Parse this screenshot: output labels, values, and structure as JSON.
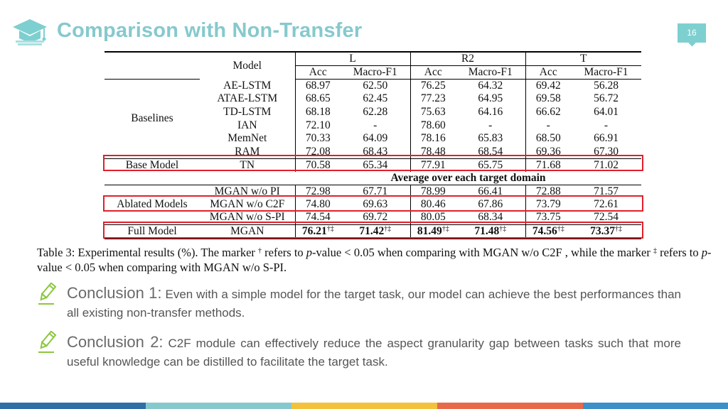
{
  "slide": {
    "title": "Comparison with Non-Transfer",
    "page_number": "16",
    "colors": {
      "title": "#86c9cd",
      "accent": "#7ecfd0",
      "highlight_box": "#e0202a"
    },
    "icons": {
      "logo": "graduation-cap-icon",
      "bullet": "pencil-icon"
    }
  },
  "table": {
    "model_header": "Model",
    "domains": [
      "L",
      "R2",
      "T"
    ],
    "metrics": [
      "Acc",
      "Macro-F1",
      "Acc",
      "Macro-F1",
      "Acc",
      "Macro-F1"
    ],
    "baselines_label": "Baselines",
    "baselines": [
      {
        "model": "AE-LSTM",
        "vals": [
          "68.97",
          "62.50",
          "76.25",
          "64.32",
          "69.42",
          "56.28"
        ]
      },
      {
        "model": "ATAE-LSTM",
        "vals": [
          "68.65",
          "62.45",
          "77.23",
          "64.95",
          "69.58",
          "56.72"
        ]
      },
      {
        "model": "TD-LSTM",
        "vals": [
          "68.18",
          "62.28",
          "75.63",
          "64.16",
          "66.62",
          "64.01"
        ]
      },
      {
        "model": "IAN",
        "vals": [
          "72.10",
          "-",
          "78.60",
          "-",
          "-",
          "-"
        ]
      },
      {
        "model": "MemNet",
        "vals": [
          "70.33",
          "64.09",
          "78.16",
          "65.83",
          "68.50",
          "66.91"
        ]
      },
      {
        "model": "RAM",
        "vals": [
          "72.08",
          "68.43",
          "78.48",
          "68.54",
          "69.36",
          "67.30"
        ]
      }
    ],
    "base": {
      "label": "Base Model",
      "model": "TN",
      "vals": [
        "70.58",
        "65.34",
        "77.91",
        "65.75",
        "71.68",
        "71.02"
      ]
    },
    "average_header": "Average over each target domain",
    "ablated_label": "Ablated Models",
    "ablated": [
      {
        "model": "MGAN w/o PI",
        "vals": [
          "72.98",
          "67.71",
          "78.99",
          "66.41",
          "72.88",
          "71.57"
        ]
      },
      {
        "model": "MGAN w/o C2F",
        "vals": [
          "74.80",
          "69.63",
          "80.46",
          "67.86",
          "73.79",
          "72.61"
        ]
      },
      {
        "model": "MGAN w/o S-PI",
        "vals": [
          "74.54",
          "69.72",
          "80.05",
          "68.34",
          "73.75",
          "72.54"
        ]
      }
    ],
    "full": {
      "label": "Full Model",
      "model": "MGAN",
      "vals": [
        "76.21",
        "71.42",
        "81.49",
        "71.48",
        "74.56",
        "73.37"
      ],
      "marks": [
        "†‡",
        "†‡",
        "†‡",
        "†‡",
        "†‡",
        "†‡"
      ]
    }
  },
  "caption": {
    "p1": "Table 3: Experimental results (%). The marker ",
    "dagger": "†",
    "p2": " refers to ",
    "p": "p",
    "p3": "-value < 0.05 when comparing with MGAN w/o C2F , while the marker ",
    "ddagger": "‡",
    "p4": " refers to ",
    "p5": "-value < 0.05 when comparing with MGAN w/o S-PI."
  },
  "conclusions": [
    {
      "label": "Conclusion 1:",
      "text": " Even with a simple model for the target task, our model can achieve the best performances than all existing non-transfer methods."
    },
    {
      "label": "Conclusion 2:",
      "text": " C2F module can effectively reduce the aspect granularity gap between tasks such that more useful knowledge can be distilled to facilitate the target task."
    }
  ],
  "footer": {
    "bar_colors": [
      "#2f6fa6",
      "#86c9cd",
      "#f2c23c",
      "#e8694a",
      "#3d8fc9"
    ]
  }
}
